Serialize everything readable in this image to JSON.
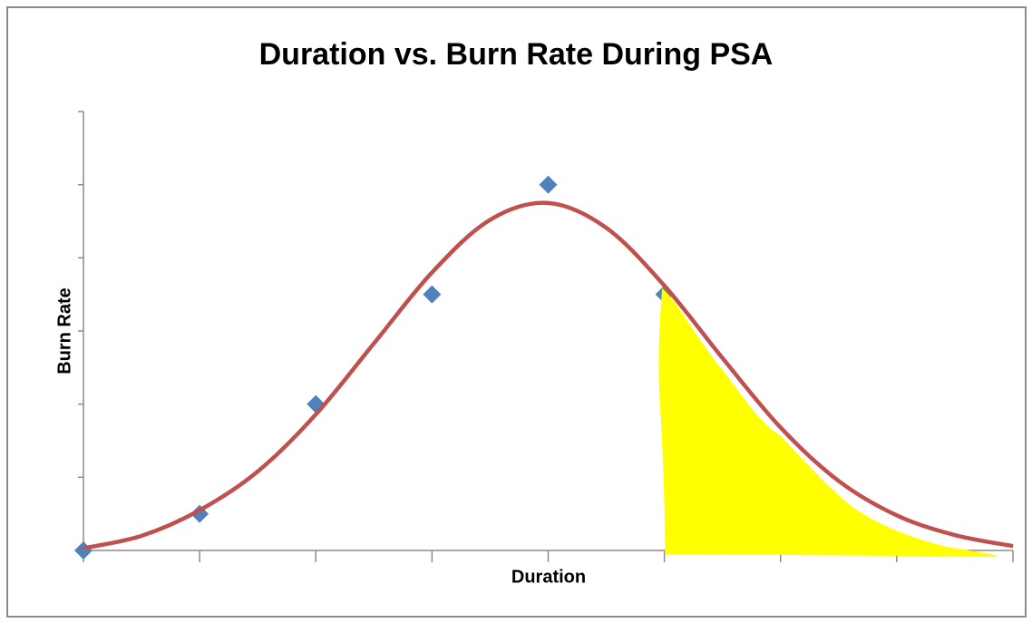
{
  "chart_data": {
    "type": "scatter",
    "title": "Duration vs. Burn Rate During PSA",
    "x_label": "Duration",
    "y_label": "Burn Rate",
    "xlim": [
      0,
      8
    ],
    "xticks": [
      0,
      1,
      2,
      3,
      4,
      5,
      6,
      7,
      8
    ],
    "ylim": [
      0,
      6
    ],
    "yticks": [
      0,
      1,
      2,
      3,
      4,
      5,
      6
    ],
    "series": [
      {
        "type": "scatter",
        "color": "#4f81bd",
        "x": [
          0,
          1,
          2,
          3,
          4,
          5
        ],
        "values": [
          0,
          0.5,
          2,
          3.5,
          5,
          3.5
        ]
      },
      {
        "type": "line",
        "color": "#c0504d",
        "x": [
          0,
          0.5,
          1,
          1.5,
          2,
          2.5,
          3,
          3.5,
          4,
          4.5,
          5,
          5.5,
          6,
          6.5,
          7,
          7.5,
          8
        ],
        "values": [
          0.03,
          0.2,
          0.55,
          1.08,
          1.86,
          2.83,
          3.8,
          4.52,
          4.75,
          4.41,
          3.62,
          2.63,
          1.68,
          0.95,
          0.48,
          0.21,
          0.06
        ]
      }
    ]
  }
}
